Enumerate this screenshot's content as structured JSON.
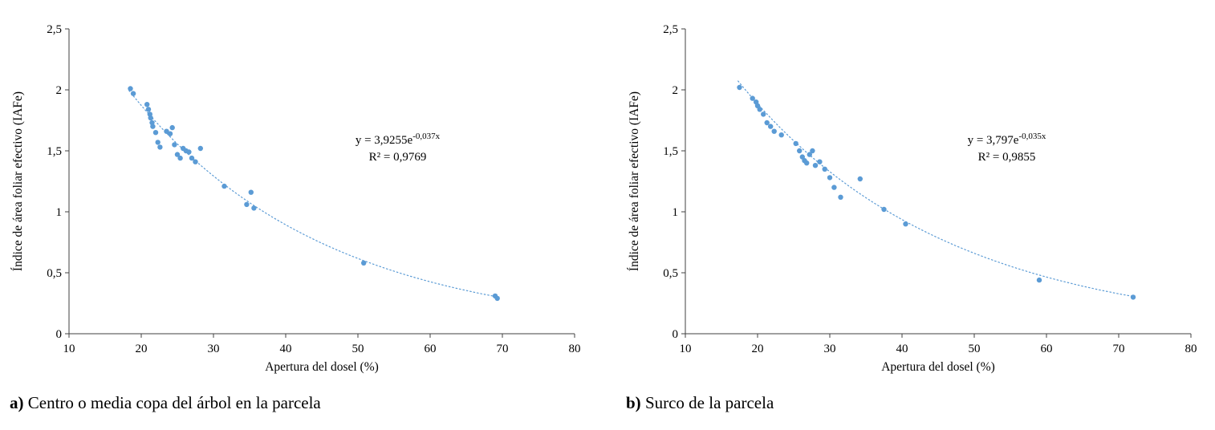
{
  "colors": {
    "background": "#ffffff",
    "accent_point": "#5B9BD5",
    "axis": "#404040",
    "text": "#000000"
  },
  "chart_data": [
    {
      "type": "scatter",
      "xlabel": "Apertura del dosel (%)",
      "ylabel": "Índice de área foliar efectivo (IAFe)",
      "xlim": [
        10,
        80
      ],
      "ylim": [
        0,
        2.5
      ],
      "xticks": [
        10,
        20,
        30,
        40,
        50,
        60,
        70,
        80
      ],
      "xtick_labels": [
        "10",
        "20",
        "30",
        "40",
        "50",
        "60",
        "70",
        "80"
      ],
      "yticks": [
        0,
        0.5,
        1,
        1.5,
        2,
        2.5
      ],
      "ytick_labels": [
        "0",
        "0,5",
        "1",
        "1,5",
        "2",
        "2,5"
      ],
      "grid": false,
      "legend": "none",
      "point_color": "#5B9BD5",
      "points": [
        [
          18.5,
          2.01
        ],
        [
          18.9,
          1.97
        ],
        [
          20.8,
          1.88
        ],
        [
          21.0,
          1.84
        ],
        [
          21.2,
          1.8
        ],
        [
          21.3,
          1.77
        ],
        [
          21.5,
          1.73
        ],
        [
          21.6,
          1.7
        ],
        [
          22.0,
          1.65
        ],
        [
          22.3,
          1.57
        ],
        [
          22.6,
          1.53
        ],
        [
          23.5,
          1.66
        ],
        [
          24.0,
          1.64
        ],
        [
          24.3,
          1.69
        ],
        [
          24.6,
          1.55
        ],
        [
          25.0,
          1.47
        ],
        [
          25.4,
          1.44
        ],
        [
          25.8,
          1.52
        ],
        [
          26.2,
          1.5
        ],
        [
          26.6,
          1.49
        ],
        [
          27.0,
          1.44
        ],
        [
          27.5,
          1.41
        ],
        [
          28.2,
          1.52
        ],
        [
          31.5,
          1.21
        ],
        [
          34.6,
          1.06
        ],
        [
          35.2,
          1.16
        ],
        [
          35.6,
          1.03
        ],
        [
          50.8,
          0.58
        ],
        [
          69.0,
          0.31
        ],
        [
          69.3,
          0.29
        ]
      ],
      "fit": {
        "model": "exponential",
        "a": 3.9255,
        "b": -0.037,
        "x_start": 18.3,
        "x_end": 69.5
      },
      "annotation": {
        "x": 55.5,
        "y": 1.56,
        "eq_base": "y = 3,9255e",
        "eq_exponent": "-0,037x",
        "r2": "R² = 0,9769"
      },
      "caption_prefix": "a)",
      "caption_text": " Centro o media copa del árbol en la parcela"
    },
    {
      "type": "scatter",
      "xlabel": "Apertura del dosel (%)",
      "ylabel": "Índice de área foliar efectivo (IAFe)",
      "xlim": [
        10,
        80
      ],
      "ylim": [
        0,
        2.5
      ],
      "xticks": [
        10,
        20,
        30,
        40,
        50,
        60,
        70,
        80
      ],
      "xtick_labels": [
        "10",
        "20",
        "30",
        "40",
        "50",
        "60",
        "70",
        "80"
      ],
      "yticks": [
        0,
        0.5,
        1,
        1.5,
        2,
        2.5
      ],
      "ytick_labels": [
        "0",
        "0,5",
        "1",
        "1,5",
        "2",
        "2,5"
      ],
      "grid": false,
      "legend": "none",
      "point_color": "#5B9BD5",
      "points": [
        [
          17.5,
          2.02
        ],
        [
          19.3,
          1.93
        ],
        [
          19.8,
          1.9
        ],
        [
          20.0,
          1.87
        ],
        [
          20.3,
          1.84
        ],
        [
          20.8,
          1.8
        ],
        [
          21.3,
          1.73
        ],
        [
          21.8,
          1.7
        ],
        [
          22.3,
          1.66
        ],
        [
          23.3,
          1.63
        ],
        [
          25.3,
          1.56
        ],
        [
          25.8,
          1.5
        ],
        [
          26.2,
          1.45
        ],
        [
          26.5,
          1.42
        ],
        [
          26.8,
          1.4
        ],
        [
          27.2,
          1.47
        ],
        [
          27.6,
          1.5
        ],
        [
          28.0,
          1.38
        ],
        [
          28.6,
          1.41
        ],
        [
          29.3,
          1.35
        ],
        [
          30.0,
          1.28
        ],
        [
          30.6,
          1.2
        ],
        [
          31.5,
          1.12
        ],
        [
          34.2,
          1.27
        ],
        [
          37.5,
          1.02
        ],
        [
          40.5,
          0.9
        ],
        [
          59.0,
          0.44
        ],
        [
          72.0,
          0.3
        ]
      ],
      "fit": {
        "model": "exponential",
        "a": 3.797,
        "b": -0.035,
        "x_start": 17.3,
        "x_end": 72.2
      },
      "annotation": {
        "x": 54.5,
        "y": 1.56,
        "eq_base": "y = 3,797e",
        "eq_exponent": "-0,035x",
        "r2": "R² = 0,9855"
      },
      "caption_prefix": "b)",
      "caption_text": " Surco de la parcela"
    }
  ]
}
